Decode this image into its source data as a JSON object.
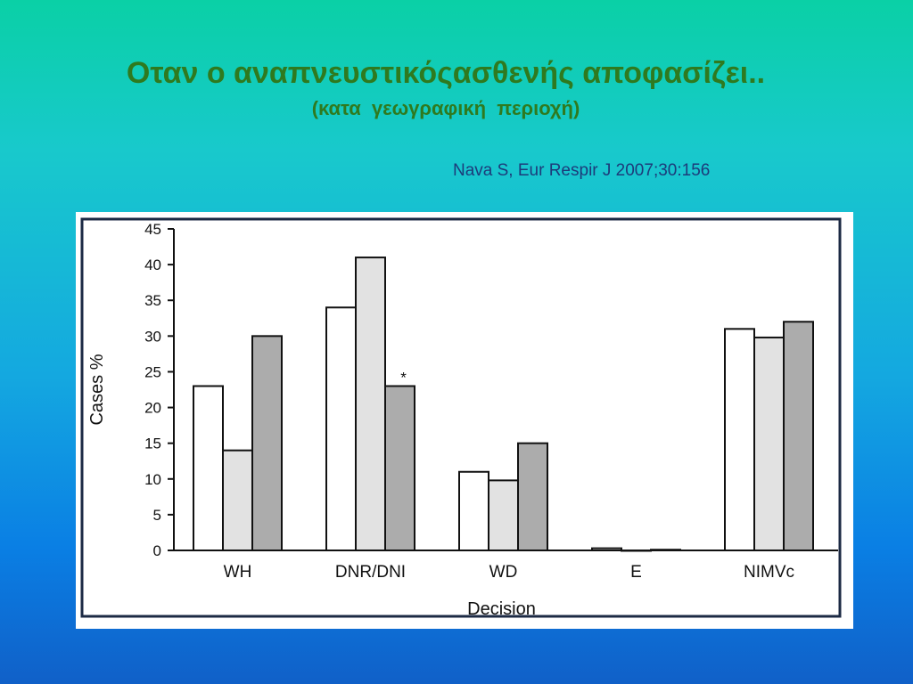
{
  "slide": {
    "title": "Οταν ο αναπνευστικόςασθενής αποφασίζει..",
    "subtitle": "(κατα  γεωγραφική  περιοχή)",
    "citation": "Nava S, Eur Respir J 2007;30:156"
  },
  "chart_data": {
    "type": "bar",
    "categories": [
      "WH",
      "DNR/DNI",
      "WD",
      "E",
      "NIMVc"
    ],
    "series": [
      {
        "values": [
          23,
          34,
          11,
          0.3,
          31
        ],
        "color": "#ffffff"
      },
      {
        "values": [
          14,
          41,
          9.8,
          0,
          29.8
        ],
        "color": "#e2e2e2"
      },
      {
        "values": [
          30,
          23,
          15,
          0.1,
          32
        ],
        "color": "#acacac"
      }
    ],
    "xlabel": "Decision",
    "ylabel": "Cases %",
    "ylim": [
      0,
      45
    ],
    "yticks": [
      0,
      5,
      10,
      15,
      20,
      25,
      30,
      35,
      40,
      45
    ],
    "grid": false,
    "annotations": [
      {
        "category": "DNR/DNI",
        "series_index": 2,
        "text": "*"
      }
    ]
  }
}
